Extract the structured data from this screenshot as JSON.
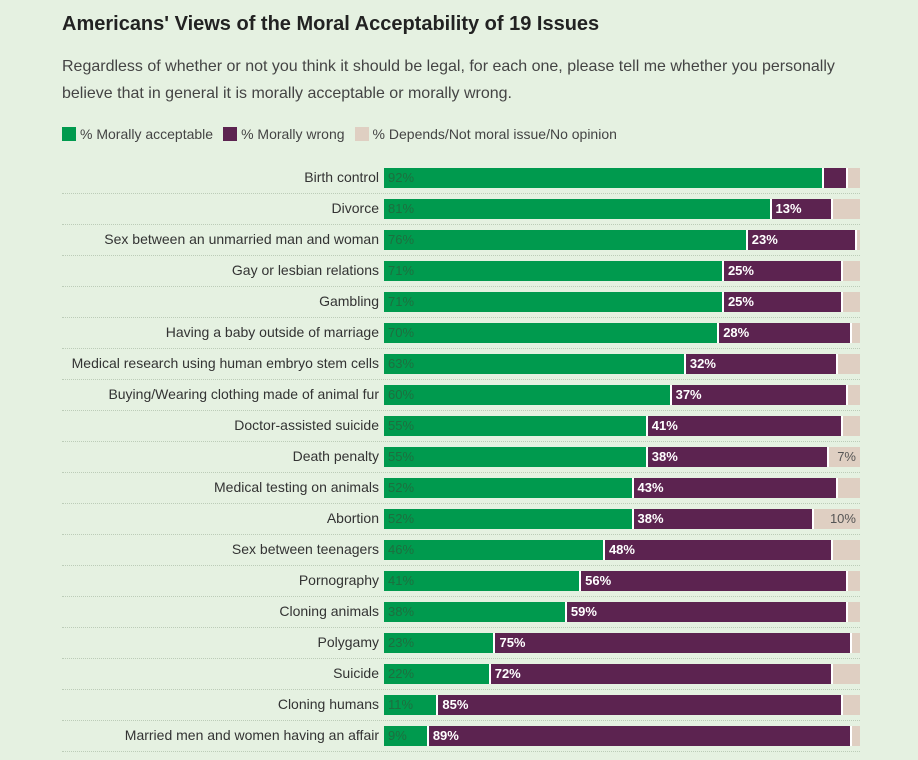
{
  "chart_data": {
    "type": "bar",
    "orientation": "horizontal-stacked",
    "title": "Americans' Views of the Moral Acceptability of 19 Issues",
    "subtitle": "Regardless of whether or not you think it should be legal, for each one, please tell me whether you personally believe that in general it is morally acceptable or morally wrong.",
    "legend": [
      "% Morally acceptable",
      "% Morally wrong",
      "% Depends/Not moral issue/No opinion"
    ],
    "colors": [
      "#009a4e",
      "#5c2350",
      "#dfcfc2"
    ],
    "categories": [
      "Birth control",
      "Divorce",
      "Sex between an unmarried man and woman",
      "Gay or lesbian relations",
      "Gambling",
      "Having a baby outside of marriage",
      "Medical research using human embryo stem cells",
      "Buying/Wearing clothing made of animal fur",
      "Doctor-assisted suicide",
      "Death penalty",
      "Medical testing on animals",
      "Abortion",
      "Sex between teenagers",
      "Pornography",
      "Cloning animals",
      "Polygamy",
      "Suicide",
      "Cloning humans",
      "Married men and women having an affair"
    ],
    "series": [
      {
        "name": "% Morally acceptable",
        "values": [
          92,
          81,
          76,
          71,
          71,
          70,
          63,
          60,
          55,
          55,
          52,
          52,
          46,
          41,
          38,
          23,
          22,
          11,
          9
        ]
      },
      {
        "name": "% Morally wrong",
        "values": [
          5,
          13,
          23,
          25,
          25,
          28,
          32,
          37,
          41,
          38,
          43,
          38,
          48,
          56,
          59,
          75,
          72,
          85,
          89
        ]
      },
      {
        "name": "% Depends/Not moral issue/No opinion",
        "values": [
          3,
          6,
          1,
          4,
          4,
          2,
          5,
          3,
          4,
          7,
          5,
          10,
          6,
          3,
          3,
          2,
          6,
          4,
          2
        ]
      }
    ],
    "labels": [
      [
        "92%",
        "81%",
        "76%",
        "71%",
        "71%",
        "70%",
        "63%",
        "60%",
        "55%",
        "55%",
        "52%",
        "52%",
        "46%",
        "41%",
        "38%",
        "23%",
        "22%",
        "11%",
        "9%"
      ],
      [
        "",
        "13%",
        "23%",
        "25%",
        "25%",
        "28%",
        "32%",
        "37%",
        "41%",
        "38%",
        "43%",
        "38%",
        "48%",
        "56%",
        "59%",
        "75%",
        "72%",
        "85%",
        "89%"
      ],
      [
        "",
        "",
        "",
        "",
        "",
        "",
        "",
        "",
        "",
        "7%",
        "",
        "10%",
        "",
        "",
        "",
        "",
        "",
        "",
        ""
      ]
    ],
    "xlim": [
      0,
      100
    ]
  }
}
